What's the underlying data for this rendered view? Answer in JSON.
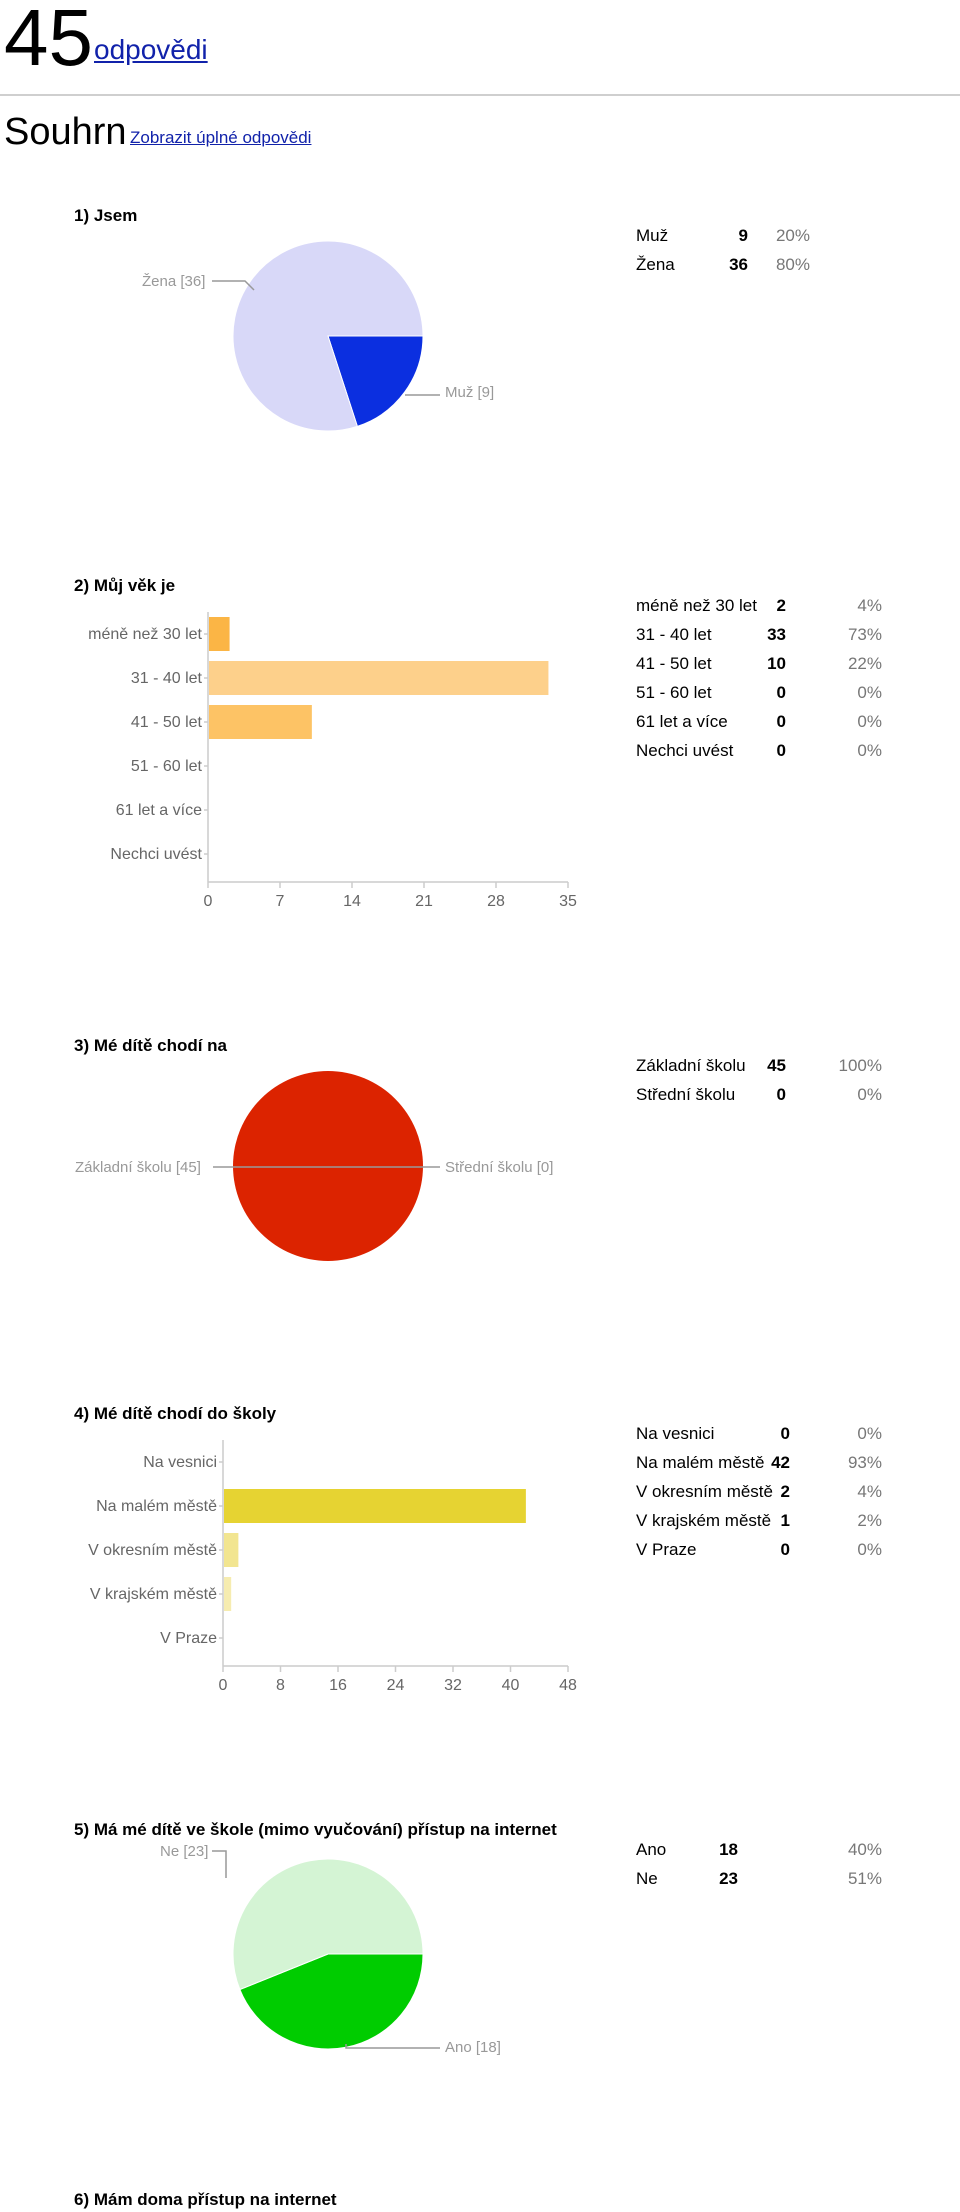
{
  "header": {
    "count": "45",
    "count_link": "odpovědi"
  },
  "summary": {
    "title": "Souhrn",
    "full_link": "Zobrazit úplné odpovědi"
  },
  "questions": [
    {
      "title": "1) Jsem",
      "rows": [
        {
          "label": "Muž",
          "count": "9",
          "pct": "20%"
        },
        {
          "label": "Žena",
          "count": "36",
          "pct": "80%"
        }
      ],
      "pie_labels": [
        "Žena [36]",
        "Muž [9]"
      ]
    },
    {
      "title": "2) Můj věk je",
      "rows": [
        {
          "label": "méně než 30 let",
          "count": "2",
          "pct": "4%"
        },
        {
          "label": "31 - 40 let",
          "count": "33",
          "pct": "73%"
        },
        {
          "label": "41 - 50 let",
          "count": "10",
          "pct": "22%"
        },
        {
          "label": "51 - 60 let",
          "count": "0",
          "pct": "0%"
        },
        {
          "label": "61 let a více",
          "count": "0",
          "pct": "0%"
        },
        {
          "label": "Nechci uvést",
          "count": "0",
          "pct": "0%"
        }
      ]
    },
    {
      "title": "3) Mé dítě chodí na",
      "rows": [
        {
          "label": "Základní školu",
          "count": "45",
          "pct": "100%"
        },
        {
          "label": "Střední školu",
          "count": "0",
          "pct": "0%"
        }
      ],
      "pie_labels": [
        "Základní školu [45]",
        "Střední školu [0]"
      ]
    },
    {
      "title": "4) Mé dítě chodí do školy",
      "rows": [
        {
          "label": "Na vesnici",
          "count": "0",
          "pct": "0%"
        },
        {
          "label": "Na malém městě",
          "count": "42",
          "pct": "93%"
        },
        {
          "label": "V okresním městě",
          "count": "2",
          "pct": "4%"
        },
        {
          "label": "V krajském městě",
          "count": "1",
          "pct": "2%"
        },
        {
          "label": "V Praze",
          "count": "0",
          "pct": "0%"
        }
      ]
    },
    {
      "title": "5) Má mé dítě ve škole (mimo vyučování) přístup na internet",
      "rows": [
        {
          "label": "Ano",
          "count": "18",
          "pct": "40%"
        },
        {
          "label": "Ne",
          "count": "23",
          "pct": "51%"
        }
      ],
      "pie_labels": [
        "Ne [23]",
        "Ano [18]"
      ]
    },
    {
      "title": "6) Mám doma přístup na internet"
    }
  ],
  "chart_data": [
    {
      "type": "pie",
      "title": "",
      "categories": [
        "Muž",
        "Žena"
      ],
      "values": [
        9,
        36
      ],
      "colors": [
        "#0b2fe0",
        "#d8d8f8"
      ]
    },
    {
      "type": "bar",
      "orientation": "horizontal",
      "title": "",
      "categories": [
        "méně než 30 let",
        "31 - 40 let",
        "41 - 50 let",
        "51 - 60 let",
        "61 let a více",
        "Nechci uvést"
      ],
      "values": [
        2,
        33,
        10,
        0,
        0,
        0
      ],
      "xlim": [
        0,
        35
      ],
      "xticks": [
        0,
        7,
        14,
        21,
        28,
        35
      ],
      "colors": [
        "#fbb545",
        "#fdd08b",
        "#fdc365",
        "#fdc365",
        "#fdc365",
        "#fdc365"
      ]
    },
    {
      "type": "pie",
      "title": "",
      "categories": [
        "Základní školu",
        "Střední školu"
      ],
      "values": [
        45,
        0
      ],
      "colors": [
        "#dc2300",
        "#dc2300"
      ]
    },
    {
      "type": "bar",
      "orientation": "horizontal",
      "title": "",
      "categories": [
        "Na vesnici",
        "Na malém městě",
        "V okresním městě",
        "V krajském městě",
        "V Praze"
      ],
      "values": [
        0,
        42,
        2,
        1,
        0
      ],
      "xlim": [
        0,
        48
      ],
      "xticks": [
        0,
        8,
        16,
        24,
        32,
        40,
        48
      ],
      "colors": [
        "#e6d332",
        "#e6d332",
        "#f2e590",
        "#f6ecb0",
        "#e6d332"
      ]
    },
    {
      "type": "pie",
      "title": "",
      "categories": [
        "Ano",
        "Ne"
      ],
      "values": [
        18,
        23
      ],
      "colors": [
        "#00cc00",
        "#d4f4d4"
      ]
    }
  ]
}
